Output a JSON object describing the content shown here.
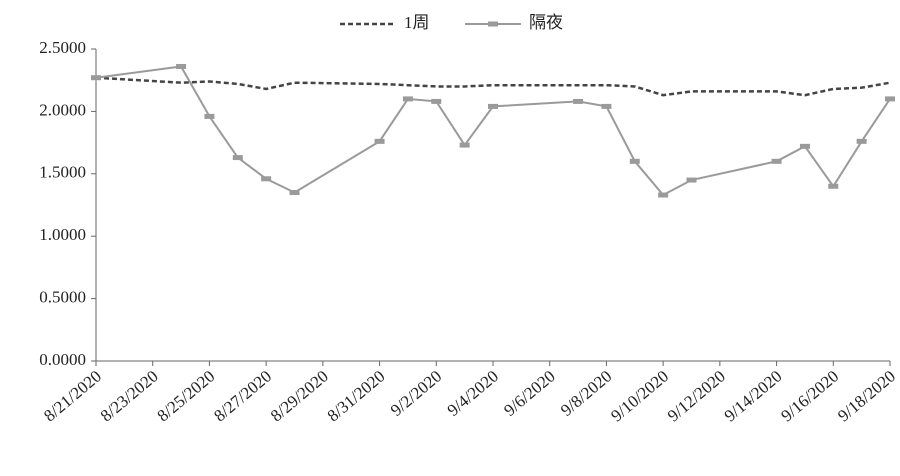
{
  "chart_data": {
    "type": "line",
    "x": [
      "8/21/2020",
      "8/24/2020",
      "8/25/2020",
      "8/26/2020",
      "8/27/2020",
      "8/28/2020",
      "8/31/2020",
      "9/1/2020",
      "9/2/2020",
      "9/3/2020",
      "9/4/2020",
      "9/7/2020",
      "9/8/2020",
      "9/9/2020",
      "9/10/2020",
      "9/11/2020",
      "9/14/2020",
      "9/15/2020",
      "9/16/2020",
      "9/17/2020",
      "9/18/2020"
    ],
    "series": [
      {
        "name": "1周",
        "color": "#444444",
        "dashed": true,
        "marker": false,
        "values": [
          2.27,
          2.23,
          2.24,
          2.22,
          2.18,
          2.23,
          2.22,
          2.21,
          2.2,
          2.2,
          2.21,
          2.21,
          2.21,
          2.2,
          2.13,
          2.16,
          2.16,
          2.13,
          2.18,
          2.19,
          2.23
        ]
      },
      {
        "name": "隔夜",
        "color": "#9a9a9a",
        "dashed": false,
        "marker": true,
        "values": [
          2.27,
          2.36,
          1.96,
          1.63,
          1.46,
          1.35,
          1.76,
          2.1,
          2.08,
          1.73,
          2.04,
          2.08,
          2.04,
          1.6,
          1.33,
          1.45,
          1.6,
          1.72,
          1.4,
          1.76,
          2.1
        ]
      }
    ],
    "xlim": [
      "8/21/2020",
      "9/18/2020"
    ],
    "xticks": [
      "8/21/2020",
      "8/23/2020",
      "8/25/2020",
      "8/27/2020",
      "8/29/2020",
      "8/31/2020",
      "9/2/2020",
      "9/4/2020",
      "9/6/2020",
      "9/8/2020",
      "9/10/2020",
      "9/12/2020",
      "9/14/2020",
      "9/16/2020",
      "9/18/2020"
    ],
    "ylim": [
      0,
      2.5
    ],
    "yticks": [
      {
        "value": 0,
        "label": "0.0000"
      },
      {
        "value": 0.5,
        "label": "0.5000"
      },
      {
        "value": 1,
        "label": "1.0000"
      },
      {
        "value": 1.5,
        "label": "1.5000"
      },
      {
        "value": 2,
        "label": "2.0000"
      },
      {
        "value": 2.5,
        "label": "2.5000"
      }
    ],
    "legend": "top",
    "grid": false
  }
}
